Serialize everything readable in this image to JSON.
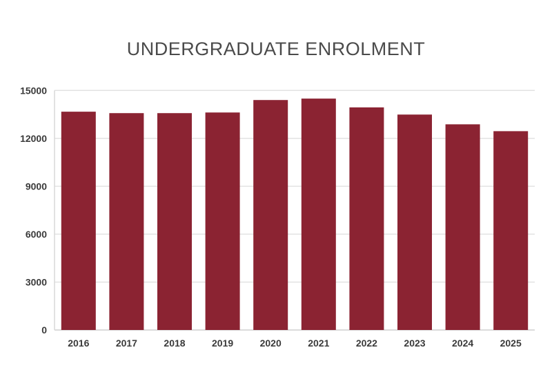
{
  "chart_data": {
    "type": "bar",
    "title": "UNDERGRADUATE ENROLMENT",
    "xlabel": "",
    "ylabel": "",
    "categories": [
      "2016",
      "2017",
      "2018",
      "2019",
      "2020",
      "2021",
      "2022",
      "2023",
      "2024",
      "2025"
    ],
    "values": [
      13670,
      13580,
      13580,
      13620,
      14400,
      14490,
      13940,
      13490,
      12880,
      12450
    ],
    "ylim": [
      0,
      15000
    ],
    "yticks": [
      0,
      3000,
      6000,
      9000,
      12000,
      15000
    ],
    "grid": true,
    "bar_color": "#8b2332"
  }
}
